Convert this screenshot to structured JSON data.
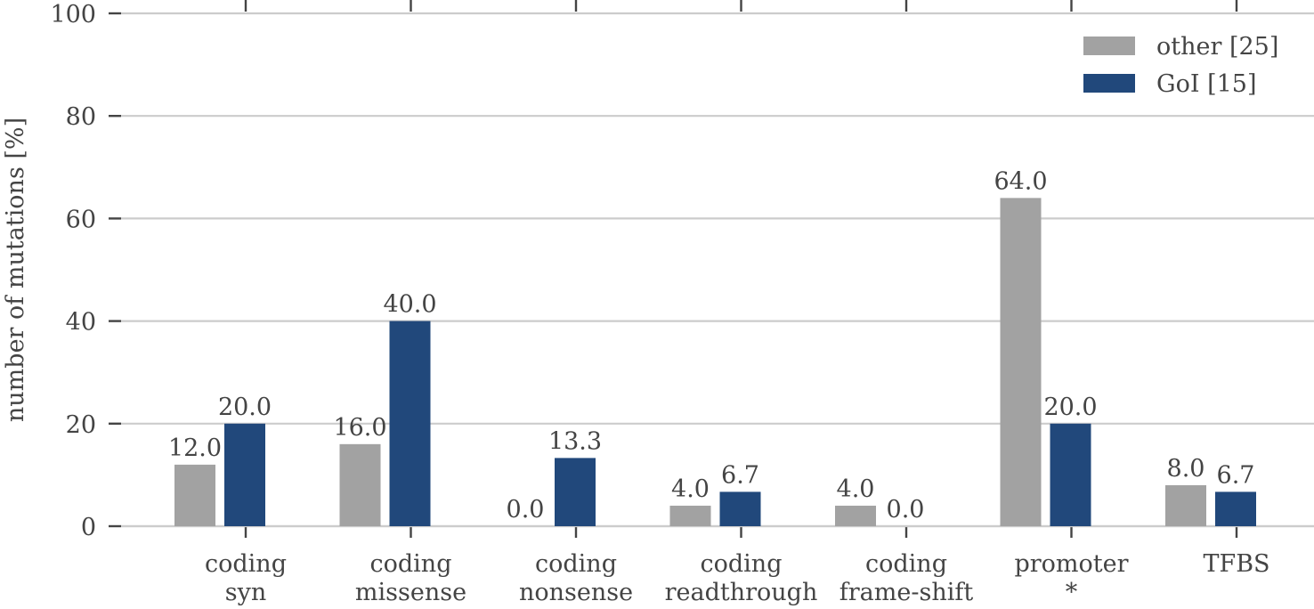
{
  "chart_data": {
    "type": "bar",
    "ylabel": "number of mutations [%]",
    "ylim": [
      0,
      100
    ],
    "yticks": [
      0,
      20,
      40,
      60,
      80,
      100
    ],
    "grid": "horizontal",
    "legend_position": "top-right",
    "categories": [
      [
        "coding",
        "syn"
      ],
      [
        "coding",
        "missense"
      ],
      [
        "coding",
        "nonsense"
      ],
      [
        "coding",
        "readthrough"
      ],
      [
        "coding",
        "frame-shift"
      ],
      [
        "promoter",
        "*"
      ],
      [
        "TFBS"
      ]
    ],
    "series": [
      {
        "name": "other [25]",
        "color": "#a2a2a2",
        "values": [
          12.0,
          16.0,
          0.0,
          4.0,
          4.0,
          64.0,
          8.0
        ],
        "labels": [
          "12.0",
          "16.0",
          "0.0",
          "4.0",
          "4.0",
          "64.0",
          "8.0"
        ]
      },
      {
        "name": "GoI [15]",
        "color": "#21487b",
        "values": [
          20.0,
          40.0,
          13.3,
          6.7,
          0.0,
          20.0,
          6.7
        ],
        "labels": [
          "20.0",
          "40.0",
          "13.3",
          "6.7",
          "0.0",
          "20.0",
          "6.7"
        ]
      }
    ]
  }
}
